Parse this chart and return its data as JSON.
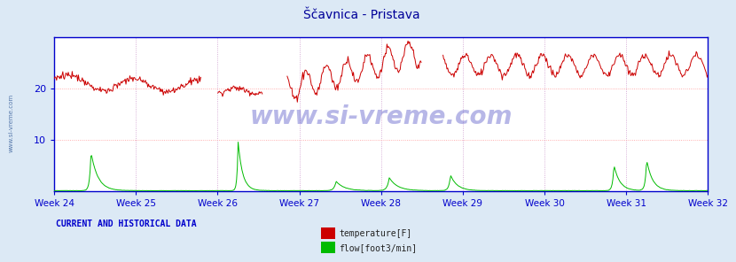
{
  "title": "Ščavnica - Pristava",
  "title_color": "#000099",
  "bg_color": "#dce9f5",
  "plot_bg_color": "#ffffff",
  "grid_color_v": "#cc99cc",
  "grid_color_h": "#ff9999",
  "axis_color": "#0000cc",
  "tick_label_color": "#0000cc",
  "ymax": 30,
  "ymin": 0,
  "yticks": [
    10,
    20
  ],
  "weeks": [
    "Week 24",
    "Week 25",
    "Week 26",
    "Week 27",
    "Week 28",
    "Week 29",
    "Week 30",
    "Week 31",
    "Week 32"
  ],
  "watermark": "www.si-vreme.com",
  "watermark_color": "#2222cc",
  "legend_label_temp": "temperature[F]",
  "legend_label_flow": "flow[foot3/min]",
  "legend_color_temp": "#cc0000",
  "legend_color_flow": "#00bb00",
  "footer_text": "CURRENT AND HISTORICAL DATA",
  "footer_color": "#0000cc",
  "sidewater_text": "www.si-vreme.com",
  "sidewater_color": "#5577aa",
  "temp_color": "#cc0000",
  "flow_color": "#00bb00",
  "n_points": 840
}
